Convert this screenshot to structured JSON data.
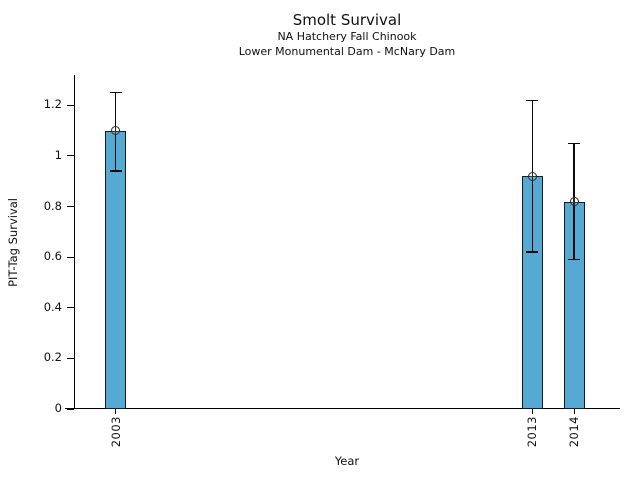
{
  "chart_data": {
    "type": "bar",
    "title": "Smolt Survival",
    "subtitles": [
      "NA Hatchery Fall Chinook",
      "Lower Monumental Dam - McNary Dam"
    ],
    "xlabel": "Year",
    "ylabel": "PIT-Tag Survival",
    "categories": [
      "2003",
      "2013",
      "2014"
    ],
    "points": [
      {
        "year": 2003,
        "label": "2003",
        "value": 1.1,
        "ci_low": 0.94,
        "ci_high": 1.25
      },
      {
        "year": 2013,
        "label": "2013",
        "value": 0.92,
        "ci_low": 0.62,
        "ci_high": 1.22
      },
      {
        "year": 2014,
        "label": "2014",
        "value": 0.82,
        "ci_low": 0.59,
        "ci_high": 1.05
      }
    ],
    "yticks": [
      {
        "value": 0,
        "label": "0"
      },
      {
        "value": 0.2,
        "label": "0.2"
      },
      {
        "value": 0.4,
        "label": "0.4"
      },
      {
        "value": 0.6,
        "label": "0.6"
      },
      {
        "value": 0.8,
        "label": "0.8"
      },
      {
        "value": 1,
        "label": "1"
      },
      {
        "value": 1.2,
        "label": "1.2"
      }
    ],
    "x_range": [
      2002,
      2015.1
    ],
    "ylim": [
      0,
      1.32
    ],
    "grid": false,
    "legend": "none",
    "colors": {
      "bar_fill": "#56A9D3",
      "bar_edge": "#1a1a1a",
      "error_bar": "#0a0a0a",
      "background": "#ffffff",
      "text": "#111111"
    }
  }
}
